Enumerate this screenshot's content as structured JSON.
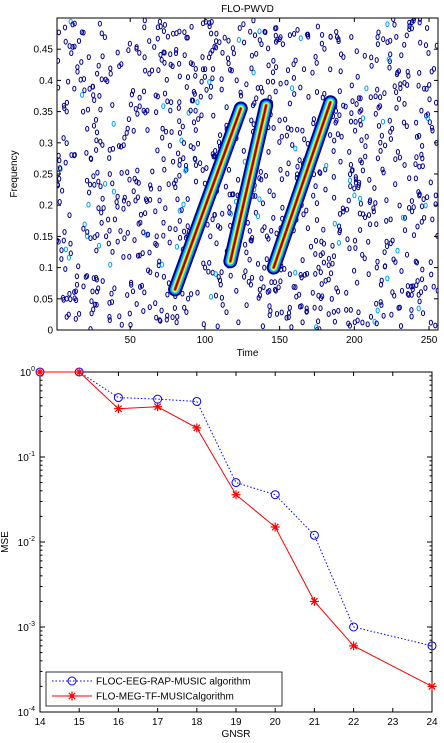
{
  "chart_data": [
    {
      "type": "contour",
      "title": "FLO-PWVD",
      "x_label": "Time",
      "y_label": "Frequency",
      "xlim": [
        1,
        256
      ],
      "ylim": [
        0,
        0.5
      ],
      "xticks": [
        50,
        100,
        150,
        200,
        250
      ],
      "yticks": [
        0,
        0.05,
        0.1,
        0.15,
        0.2,
        0.25,
        0.3,
        0.35,
        0.4,
        0.45
      ],
      "colormap": [
        "#00008f",
        "#00a0ff",
        "#40ffbf",
        "#ffff00",
        "#ff3000",
        "#800000"
      ],
      "series": [
        {
          "x": [
            80,
            124
          ],
          "values": [
            0.065,
            0.355
          ]
        },
        {
          "x": [
            117,
            141
          ],
          "values": [
            0.11,
            0.36
          ]
        },
        {
          "x": [
            146,
            184
          ],
          "values": [
            0.1,
            0.365
          ]
        }
      ]
    },
    {
      "type": "line",
      "x_label": "GNSR",
      "y_label": "MSE",
      "log_y": true,
      "xlim": [
        14,
        24
      ],
      "ylim": [
        0.0001,
        1
      ],
      "xticks": [
        14,
        15,
        16,
        17,
        18,
        19,
        20,
        21,
        22,
        23,
        24
      ],
      "yticks": [
        {
          "value": 1,
          "label": "10^0"
        },
        {
          "value": 0.1,
          "label": "10^-1"
        },
        {
          "value": 0.01,
          "label": "10^-2"
        },
        {
          "value": 0.001,
          "label": "10^-3"
        },
        {
          "value": 0.0001,
          "label": "10^-4"
        }
      ],
      "legend": "lower left",
      "x": [
        14,
        15,
        16,
        17,
        18,
        19,
        20,
        21,
        22,
        24
      ],
      "series": [
        {
          "name": "FLOC-EEG-RAP-MUSIC algorithm",
          "color": "#0000ff",
          "style": "dotted",
          "marker": "circle",
          "values": [
            1,
            1,
            0.5,
            0.48,
            0.45,
            0.05,
            0.036,
            0.012,
            0.001,
            0.0006
          ]
        },
        {
          "name": "FLO-MEG-TF-MUSICalgorithm",
          "color": "#ff0000",
          "style": "solid",
          "marker": "star",
          "values": [
            1,
            1,
            0.37,
            0.39,
            0.22,
            0.036,
            0.015,
            0.002,
            0.0006,
            0.0002
          ]
        }
      ]
    }
  ]
}
